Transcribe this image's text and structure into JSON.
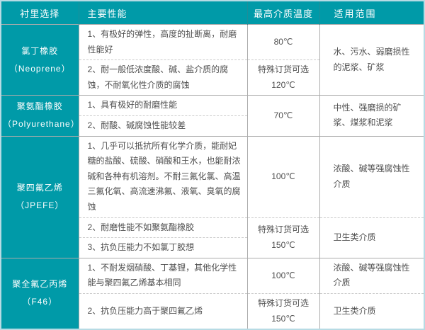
{
  "colors": {
    "teal": "#009aa8",
    "header_text": "#ffffff",
    "body_text": "#4f4f4f",
    "solid_border": "#ababab",
    "dashed_border": "#cccccc",
    "outer_border": "#b7dbe4",
    "header_divider": "#1f8d99"
  },
  "table": {
    "columns": [
      "衬里选择",
      "主要性能",
      "最高介质温度",
      "适用范围"
    ],
    "groups": [
      {
        "lining_name": "氯丁橡胶",
        "lining_code": "（Neoprene）",
        "rows": [
          {
            "perf": "1、有极好的弹性，高度的扯断离，耐磨性能好",
            "temp": {
              "lines": [
                "80℃"
              ],
              "span": 1
            },
            "range": {
              "lines": [
                "水、污水、弱磨损性的泥浆、矿浆"
              ],
              "span": 2
            }
          },
          {
            "perf": "2、耐一般低浓度酸、碱、盐介质的腐蚀，不耐氧化性介质的腐蚀",
            "temp": {
              "lines": [
                "特殊订货可选",
                "120℃"
              ],
              "span": 1
            }
          }
        ]
      },
      {
        "lining_name": "聚氨酯橡胶",
        "lining_code": "（Polyurethane）",
        "rows": [
          {
            "perf": "1、具有极好的耐磨性能",
            "temp": {
              "lines": [
                "70℃"
              ],
              "span": 2
            },
            "range": {
              "lines": [
                "中性、强磨损的矿浆、煤浆和泥浆"
              ],
              "span": 2
            }
          },
          {
            "perf": "2、耐酸、碱腐蚀性能较差"
          }
        ]
      },
      {
        "lining_name": "聚四氟乙烯",
        "lining_code": "（JPEFE）",
        "rows": [
          {
            "perf": "1、几乎可以抵抗所有化学介质，能耐妃糖的盐酸、硫酸、硝酸和王水，也能耐浓碱和各种有机溶剂。不耐三氟化氯、高温三氟化氧、高流速沸氟、液氧、臭氧的腐蚀",
            "temp": {
              "lines": [
                "100℃"
              ],
              "span": 1
            },
            "range": {
              "lines": [
                "浓酸、碱等强腐蚀性介质"
              ],
              "span": 1
            }
          },
          {
            "perf": "2、耐磨性能不如聚氨酯橡胶",
            "temp": {
              "lines": [
                "特殊订货可选",
                "150℃"
              ],
              "span": 2
            },
            "range": {
              "lines": [
                "卫生类介质"
              ],
              "span": 2
            }
          },
          {
            "perf": "3、抗负压能力不如氯丁胶想"
          }
        ]
      },
      {
        "lining_name": "聚全氟乙丙烯",
        "lining_code": "（F46）",
        "rows": [
          {
            "perf": "1、不耐发烟硝酸、丁基锂，其他化学性能与聚四氟乙烯基本相同",
            "temp": {
              "lines": [
                "100℃"
              ],
              "span": 1
            },
            "range": {
              "lines": [
                "浓酸、碱等强腐蚀性介质"
              ],
              "span": 1
            }
          },
          {
            "perf": "2、抗负压能力高于聚四氟乙烯",
            "temp": {
              "lines": [
                "特殊订货可选",
                "150℃"
              ],
              "span": 1
            },
            "range": {
              "lines": [
                "卫生类介质"
              ],
              "span": 1
            }
          }
        ]
      }
    ]
  }
}
